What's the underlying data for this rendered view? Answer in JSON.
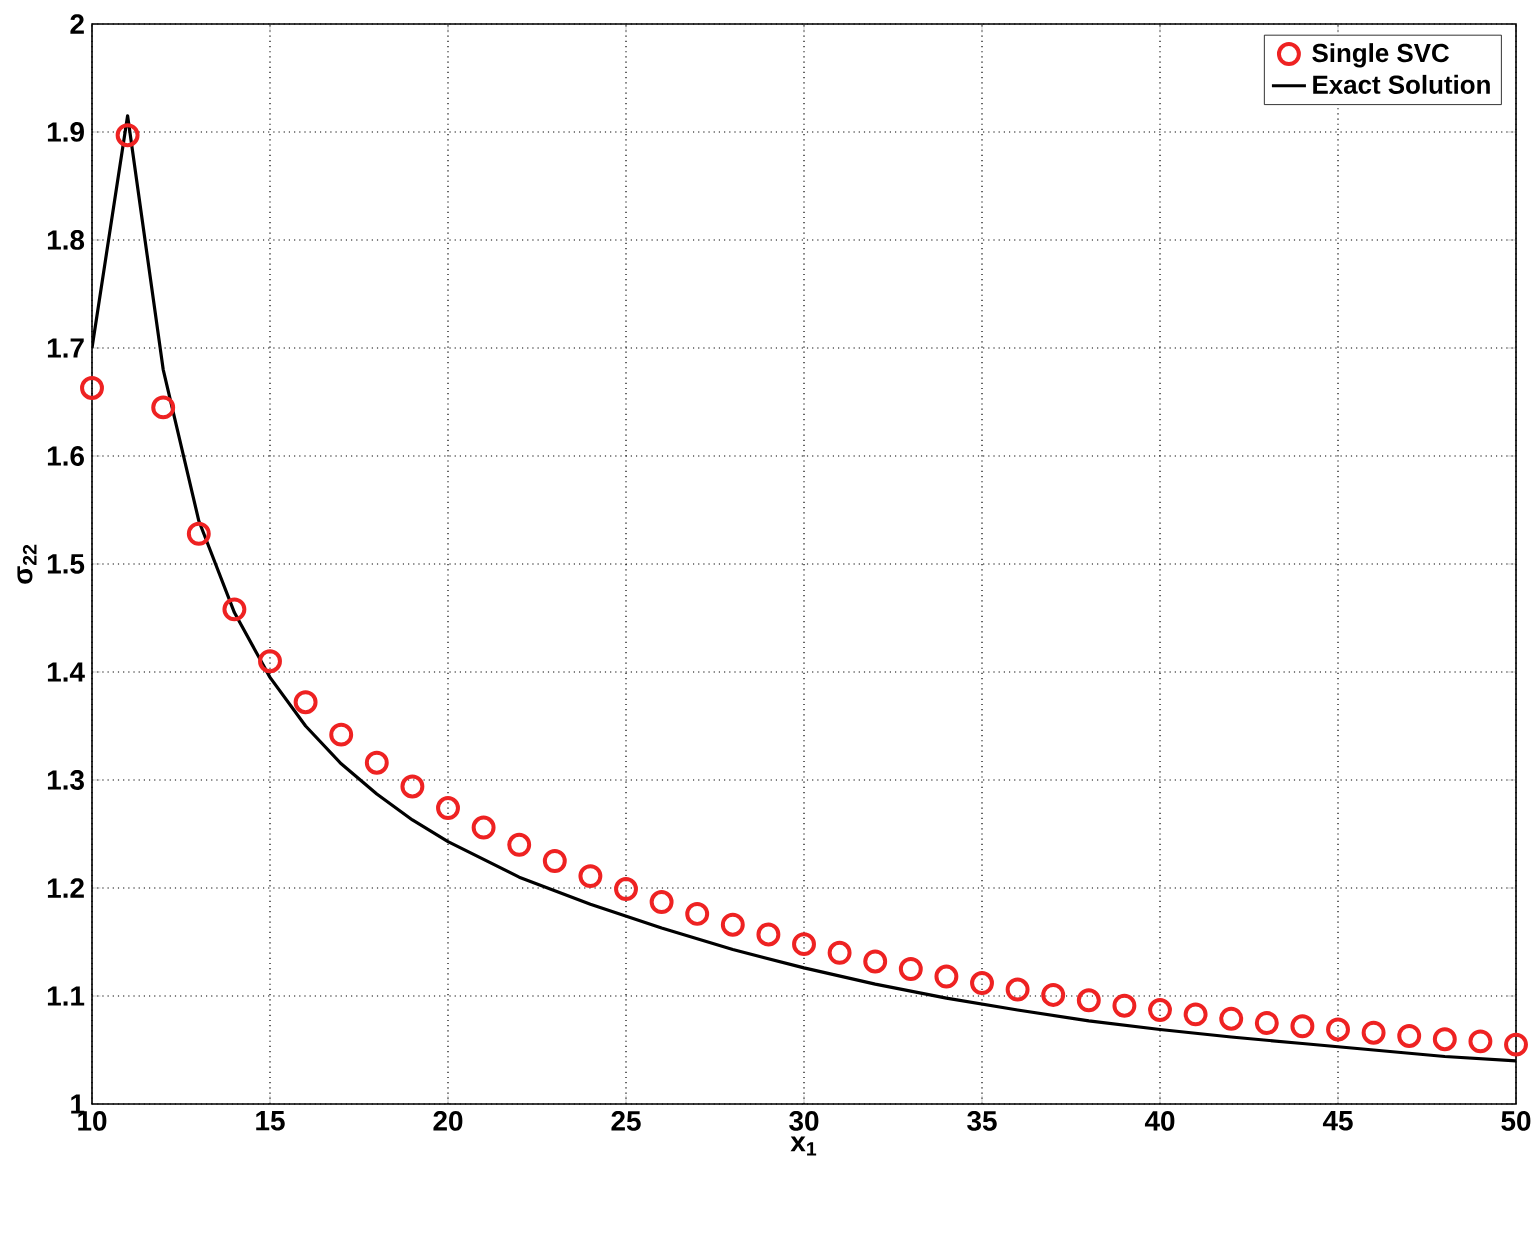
{
  "chart_data": {
    "type": "scatter",
    "xlabel": "x$_{1}$",
    "ylabel": "σ$_{22}$",
    "xlim": [
      10,
      50
    ],
    "xticks": [
      10,
      15,
      20,
      25,
      30,
      35,
      40,
      45,
      50
    ],
    "ylim": [
      1,
      2
    ],
    "yticks": [
      1,
      1.1,
      1.2,
      1.3,
      1.4,
      1.5,
      1.6,
      1.7,
      1.8,
      1.9,
      2
    ],
    "grid": true,
    "legend": "top right",
    "series": [
      {
        "name": "Single SVC",
        "marker": "circle",
        "color": "#ee2222",
        "x": [
          10,
          11,
          12,
          13,
          14,
          15,
          16,
          17,
          18,
          19,
          20,
          21,
          22,
          23,
          24,
          25,
          26,
          27,
          28,
          29,
          30,
          31,
          32,
          33,
          34,
          35,
          36,
          37,
          38,
          39,
          40,
          41,
          42,
          43,
          44,
          45,
          46,
          47,
          48,
          49,
          50
        ],
        "values": [
          1.663,
          1.897,
          1.645,
          1.528,
          1.458,
          1.41,
          1.372,
          1.342,
          1.316,
          1.294,
          1.274,
          1.256,
          1.24,
          1.225,
          1.211,
          1.199,
          1.187,
          1.176,
          1.166,
          1.157,
          1.148,
          1.14,
          1.132,
          1.125,
          1.118,
          1.112,
          1.106,
          1.101,
          1.096,
          1.091,
          1.087,
          1.083,
          1.079,
          1.075,
          1.072,
          1.069,
          1.066,
          1.063,
          1.06,
          1.058,
          1.055
        ]
      },
      {
        "name": "Exact Solution",
        "type": "line",
        "marker": "none",
        "line_style": "solid",
        "color": "#000000",
        "x": [
          10,
          11,
          12,
          13,
          14,
          15,
          16,
          17,
          18,
          19,
          20,
          22,
          24,
          26,
          28,
          30,
          32,
          34,
          36,
          38,
          40,
          42,
          44,
          46,
          48,
          50
        ],
        "values": [
          1.7,
          1.915,
          1.68,
          1.54,
          1.455,
          1.395,
          1.35,
          1.315,
          1.287,
          1.263,
          1.243,
          1.21,
          1.185,
          1.163,
          1.143,
          1.126,
          1.111,
          1.098,
          1.087,
          1.077,
          1.069,
          1.062,
          1.056,
          1.05,
          1.044,
          1.04
        ]
      }
    ]
  }
}
